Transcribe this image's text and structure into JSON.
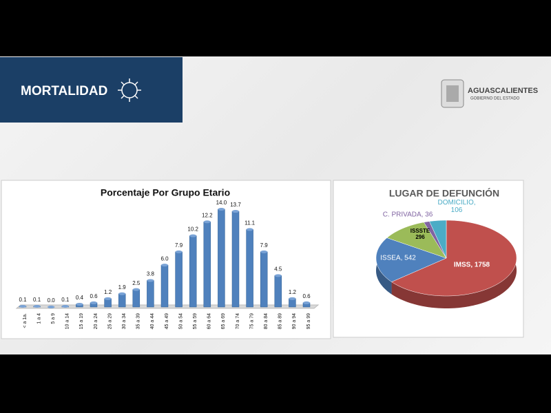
{
  "header": {
    "title": "MORTALIDAD",
    "logo_title": "AGUASCALIENTES",
    "logo_subtitle": "GOBIERNO DEL ESTADO"
  },
  "chart_data": [
    {
      "type": "bar",
      "title": "Porcentaje Por Grupo Etario",
      "color": "#4f81bd",
      "categories": [
        "< a 1a.",
        "1 a 4",
        "5 a 9",
        "10 a 14",
        "15 a 19",
        "20 a 24",
        "25 a 29",
        "30 a 34",
        "35 a 39",
        "40 a 44",
        "45 a 49",
        "50 a 54",
        "55 a 59",
        "60 a 64",
        "65 a 69",
        "70 a 74",
        "75 a 79",
        "80 a 84",
        "85 a 89",
        "90 a 94",
        "95 a 99"
      ],
      "values": [
        0.1,
        0.1,
        0.0,
        0.1,
        0.4,
        0.6,
        1.2,
        1.9,
        2.5,
        3.8,
        6.0,
        7.9,
        10.2,
        12.2,
        14.0,
        13.7,
        11.1,
        7.9,
        4.5,
        1.2,
        0.6
      ],
      "value_labels": [
        "0.1",
        "0.1",
        "0.0",
        "0.1",
        "0.4",
        "0.6",
        "1.2",
        "1.9",
        "2.5",
        "3.8",
        "6.0",
        "7.9",
        "10.2",
        "12.2",
        "14.0",
        "13.7",
        "11.1",
        "7.9",
        "4.5",
        "1.2",
        "0.6"
      ]
    },
    {
      "type": "pie",
      "title": "LUGAR DE DEFUNCIÓN",
      "categories": [
        "IMSS",
        "ISSEA",
        "ISSSTE",
        "C. PRIVADA",
        "DOMICILIO"
      ],
      "values": [
        1758,
        542,
        296,
        36,
        106
      ],
      "value_labels": [
        "IMSS, 1758",
        "ISSEA, 542",
        "ISSSTE\n296",
        "C. PRIVADA, 36",
        "DOMICILIO,\n106"
      ],
      "colors": [
        "#c0504d",
        "#4f81bd",
        "#9bbb59",
        "#8064a2",
        "#4bacc6"
      ]
    }
  ]
}
